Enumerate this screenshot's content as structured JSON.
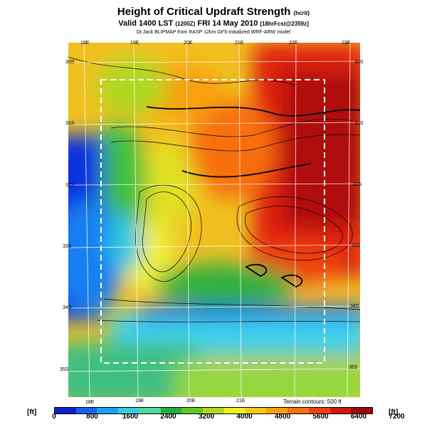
{
  "title": {
    "main": "Height of Critical Updraft Strength",
    "main_unit": "(hcrit)",
    "valid": "Valid 1400 LST",
    "valid_zulu": "(1200Z)",
    "valid_date": "FRI 14 May 2010",
    "forecast": "[18hrFcst@2359z]",
    "credit": "Dr.Jack BLIPMAP from RASP 12km GFS-initialized WRF-ARW model"
  },
  "map": {
    "lon_top": [
      "18E",
      "19E",
      "20E",
      "21E",
      "22E",
      "23E"
    ],
    "lon_bottom": [
      "18E",
      "19E",
      "20E",
      "21E"
    ],
    "lat_left": [
      "30S",
      "31S",
      "32S",
      "33S",
      "34S",
      "35S"
    ],
    "lat_right": [
      "30S",
      "31S",
      "32S",
      "33S",
      "34S",
      "35S"
    ],
    "terrain_note": "Terrain contours: 500 ft"
  },
  "legend": {
    "unit_left": "[ft]",
    "unit_right": "[ft]",
    "ticks": [
      "0",
      "800",
      "1600",
      "2400",
      "3200",
      "4000",
      "4800",
      "5600",
      "6400",
      "7200"
    ],
    "colors": [
      "#1020d0",
      "#1560f0",
      "#1aa0f5",
      "#30d0e0",
      "#50d8a0",
      "#20b040",
      "#60c820",
      "#b0d820",
      "#f0f020",
      "#f8c818",
      "#f8a010",
      "#f87010",
      "#f04010",
      "#d01810",
      "#a00808"
    ]
  }
}
